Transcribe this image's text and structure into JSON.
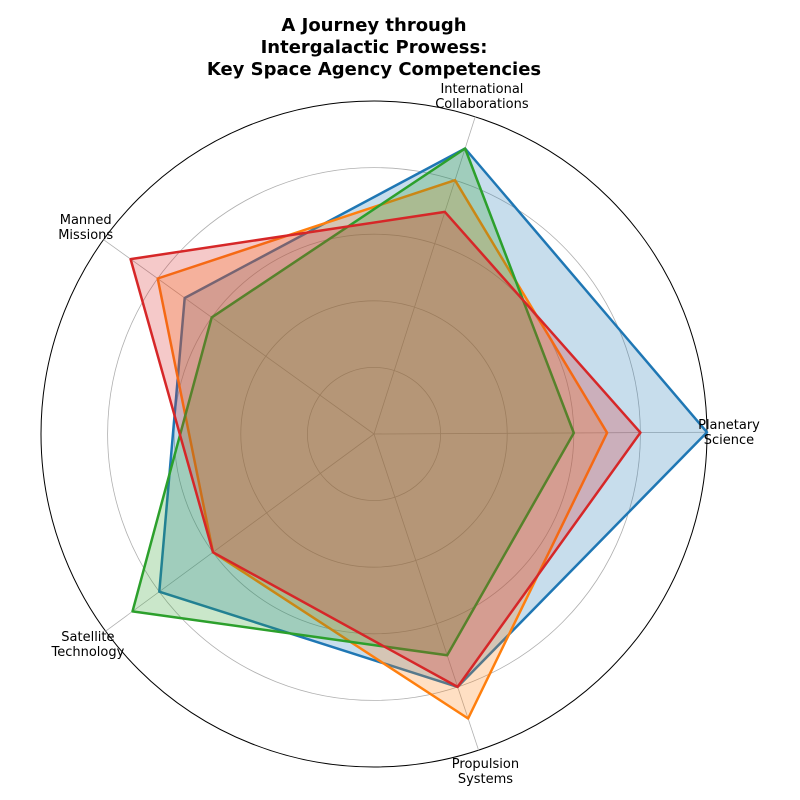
{
  "chart_data": {
    "type": "radar",
    "title_lines": [
      "A Journey through",
      "Intergalactic Prowess:",
      "Key Space Agency Competencies"
    ],
    "axes": [
      [
        "Planetary",
        "Science"
      ],
      [
        "International",
        "Collaborations"
      ],
      [
        "Manned",
        "Missions"
      ],
      [
        "Satellite",
        "Technology"
      ],
      [
        "Propulsion",
        "Systems"
      ]
    ],
    "rmax": 100,
    "grid_rings": [
      20,
      40,
      60,
      80,
      100
    ],
    "grid": true,
    "legend": false,
    "series": [
      {
        "color": "#1f77b4",
        "values": [
          100,
          90,
          70,
          80,
          80
        ]
      },
      {
        "color": "#ff7f0e",
        "values": [
          70,
          80,
          80,
          60,
          90
        ]
      },
      {
        "color": "#2ca02c",
        "values": [
          60,
          90,
          60,
          90,
          70
        ]
      },
      {
        "color": "#d62728",
        "values": [
          80,
          70,
          90,
          60,
          80
        ]
      }
    ]
  }
}
